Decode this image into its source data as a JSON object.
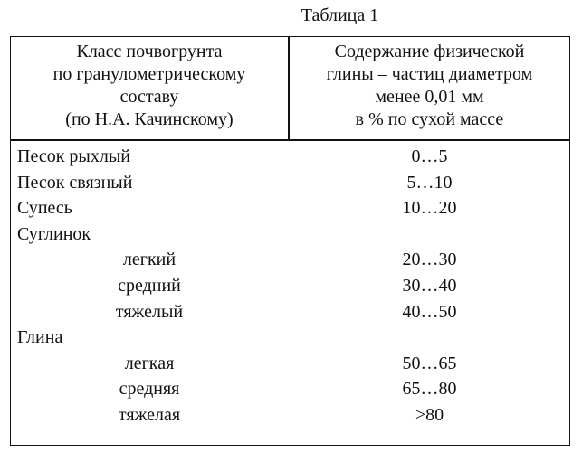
{
  "caption": "Таблица 1",
  "header": {
    "left": [
      "Класс почвогрунта",
      "по гранулометрическому",
      "составу",
      "(по Н.А. Качинскому)"
    ],
    "right": [
      "Содержание физической",
      "глины – частиц диаметром",
      "менее 0,01 мм",
      "в % по сухой массе"
    ]
  },
  "rows": [
    {
      "name": "Песок рыхлый",
      "value": "0…5",
      "level": 0
    },
    {
      "name": "Песок связный",
      "value": "5…10",
      "level": 0
    },
    {
      "name": "Супесь",
      "value": "10…20",
      "level": 0
    },
    {
      "name": "Суглинок",
      "value": "",
      "level": 0
    },
    {
      "name": "легкий",
      "value": "20…30",
      "level": 1
    },
    {
      "name": "средний",
      "value": "30…40",
      "level": 1
    },
    {
      "name": "тяжелый",
      "value": "40…50",
      "level": 1
    },
    {
      "name": "Глина",
      "value": "",
      "level": 0
    },
    {
      "name": "легкая",
      "value": "50…65",
      "level": 1
    },
    {
      "name": "средняя",
      "value": "65…80",
      "level": 1
    },
    {
      "name": "тяжелая",
      "value": ">80",
      "level": 1
    }
  ]
}
